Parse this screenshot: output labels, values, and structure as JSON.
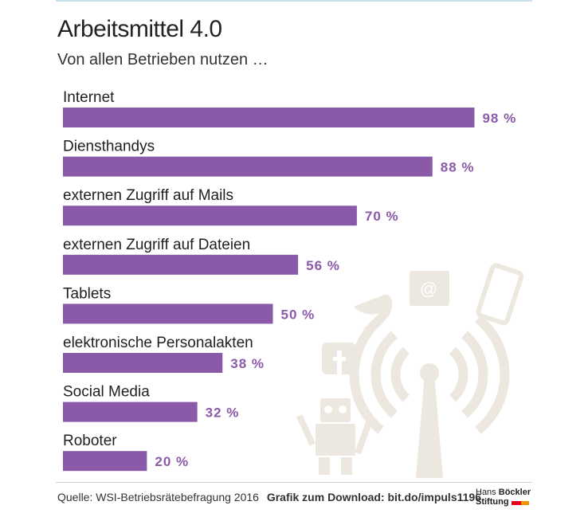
{
  "title": "Arbeitsmittel 4.0",
  "subtitle": "Von allen Betrieben nutzen …",
  "footer": {
    "source": "Quelle: WSI-Betriebsrätebefragung 2016",
    "download": "Grafik zum Download: bit.do/impuls1196"
  },
  "logo": {
    "line1_a": "Hans",
    "line1_b": "Böckler",
    "line2": "Stiftung"
  },
  "colors": {
    "bar": "#8a5aa8",
    "value_text": "#8a5aa8",
    "background_art": "#ece8df"
  },
  "background_icons": [
    "robot-icon",
    "wifi-antenna-icon",
    "twitter-bird-icon",
    "email-icon",
    "smartphone-icon",
    "facebook-icon"
  ],
  "chart_data": {
    "type": "bar",
    "orientation": "horizontal",
    "unit": "%",
    "categories": [
      "Internet",
      "Diensthandys",
      "externen Zugriff auf Mails",
      "externen Zugriff auf Dateien",
      "Tablets",
      "elektronische Personalakten",
      "Social Media",
      "Roboter"
    ],
    "values": [
      98,
      88,
      70,
      56,
      50,
      38,
      32,
      20
    ],
    "value_labels": [
      "98 %",
      "88 %",
      "70 %",
      "56 %",
      "50 %",
      "38 %",
      "32 %",
      "20 %"
    ],
    "xlim": [
      0,
      100
    ],
    "grid": false,
    "legend": "none"
  }
}
